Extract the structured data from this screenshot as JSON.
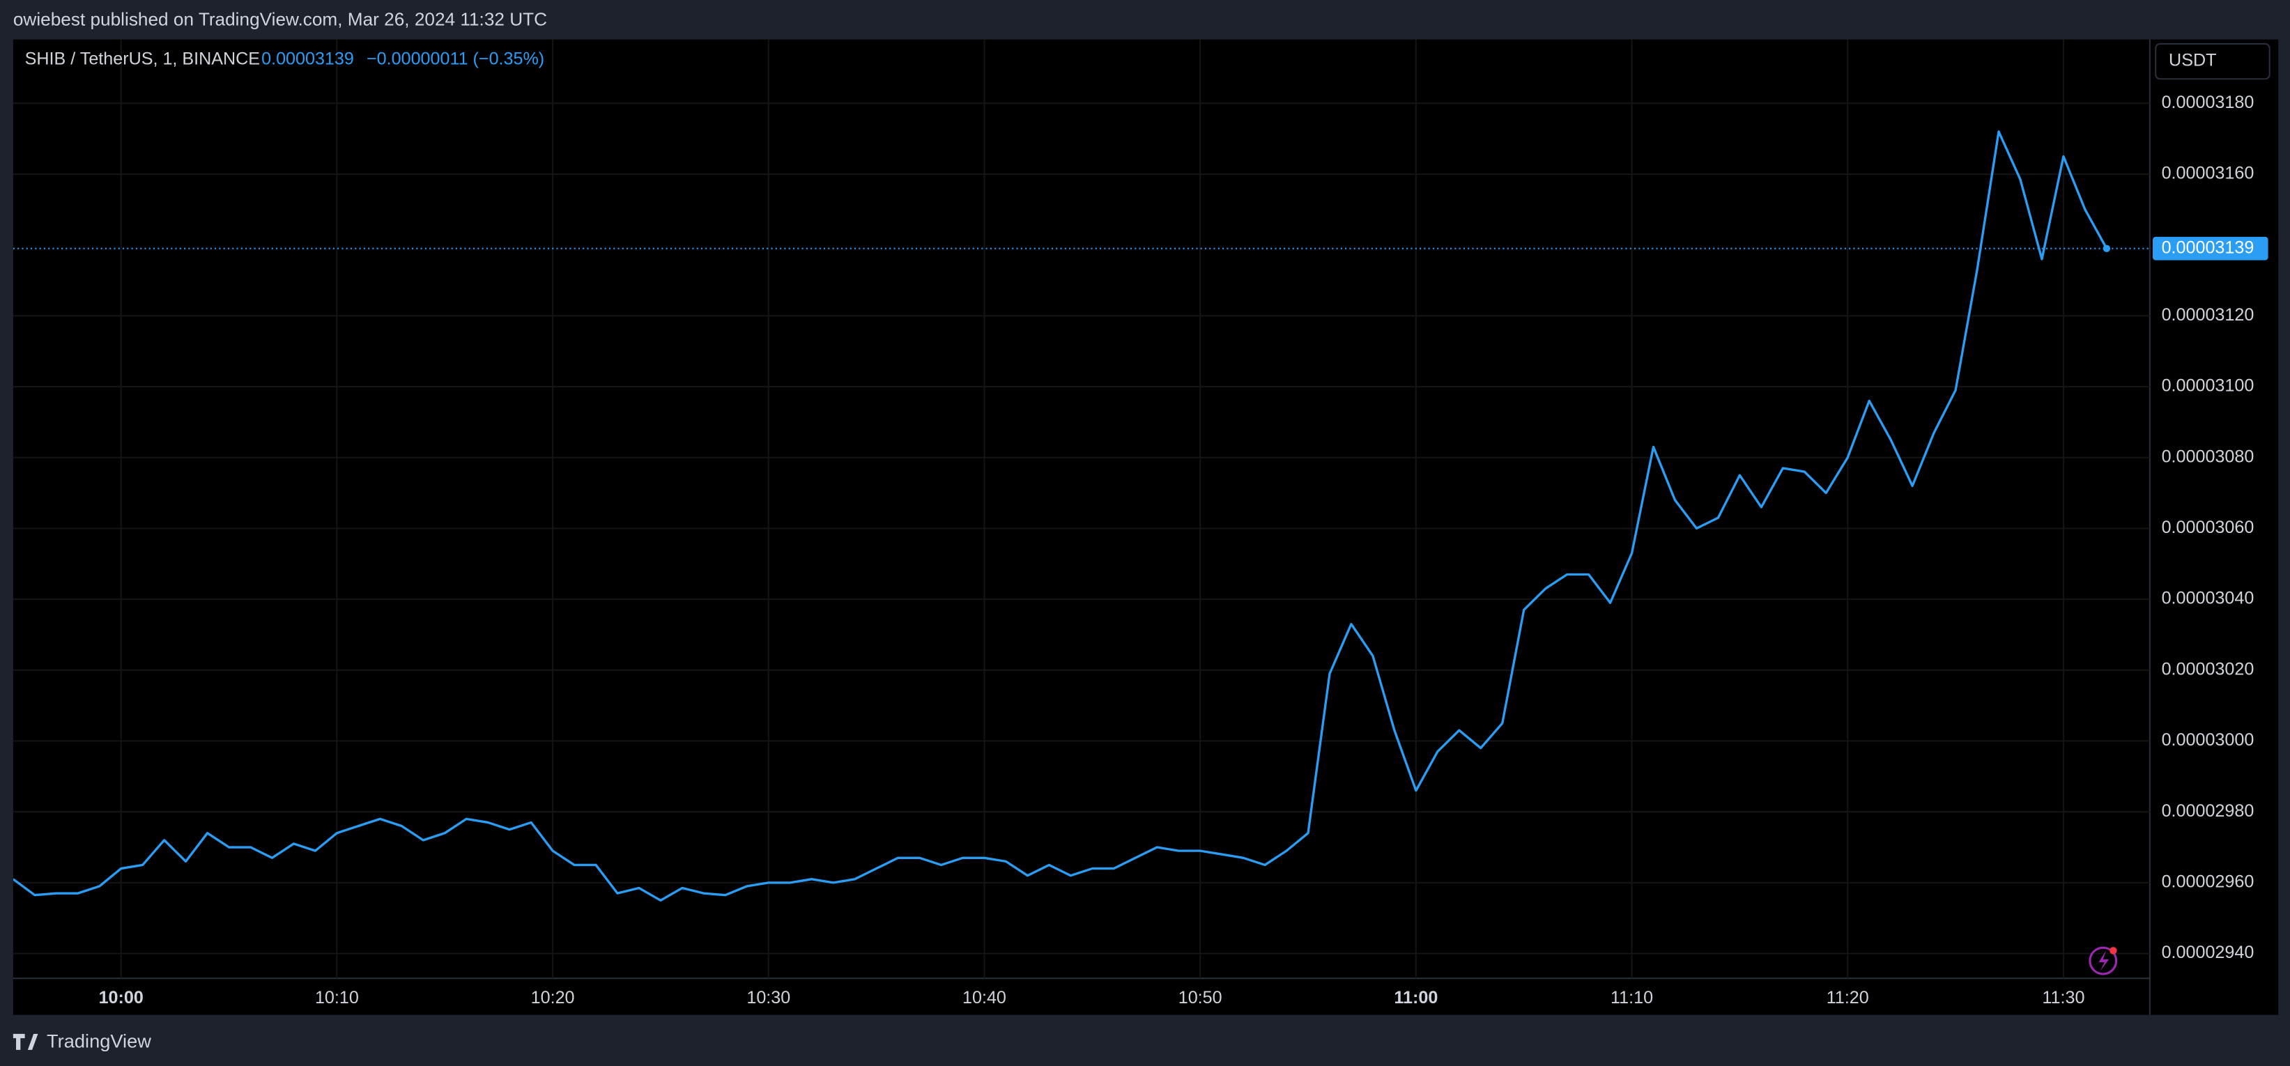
{
  "header": {
    "text": "owiebest published on TradingView.com, Mar 26, 2024 11:32 UTC"
  },
  "footer": {
    "brand": "TradingView"
  },
  "chart_data": {
    "type": "line",
    "title": "SHIB / TetherUS, 1, BINANCE",
    "last_price": {
      "value": 3.139e-05,
      "label": "0.00003139"
    },
    "change": "−0.00000011 (−0.35%)",
    "currency": "USDT",
    "color": "#2a9df4",
    "x": [
      "09:55",
      "09:56",
      "09:57",
      "09:58",
      "09:59",
      "10:00",
      "10:01",
      "10:02",
      "10:03",
      "10:04",
      "10:05",
      "10:06",
      "10:07",
      "10:08",
      "10:09",
      "10:10",
      "10:11",
      "10:12",
      "10:13",
      "10:14",
      "10:15",
      "10:16",
      "10:17",
      "10:18",
      "10:19",
      "10:20",
      "10:21",
      "10:22",
      "10:23",
      "10:24",
      "10:25",
      "10:26",
      "10:27",
      "10:28",
      "10:29",
      "10:30",
      "10:31",
      "10:32",
      "10:33",
      "10:34",
      "10:35",
      "10:36",
      "10:37",
      "10:38",
      "10:39",
      "10:40",
      "10:41",
      "10:42",
      "10:43",
      "10:44",
      "10:45",
      "10:46",
      "10:47",
      "10:48",
      "10:49",
      "10:50",
      "10:51",
      "10:52",
      "10:53",
      "10:54",
      "10:55",
      "10:56",
      "10:57",
      "10:58",
      "10:59",
      "11:00",
      "11:01",
      "11:02",
      "11:03",
      "11:04",
      "11:05",
      "11:06",
      "11:07",
      "11:08",
      "11:09",
      "11:10",
      "11:11",
      "11:12",
      "11:13",
      "11:14",
      "11:15",
      "11:16",
      "11:17",
      "11:18",
      "11:19",
      "11:20",
      "11:21",
      "11:22",
      "11:23",
      "11:24",
      "11:25",
      "11:26",
      "11:27",
      "11:28",
      "11:29",
      "11:30",
      "11:31",
      "11:32"
    ],
    "values": [
      2.961e-05,
      2.9565e-05,
      2.957e-05,
      2.957e-05,
      2.959e-05,
      2.964e-05,
      2.965e-05,
      2.972e-05,
      2.966e-05,
      2.974e-05,
      2.97e-05,
      2.97e-05,
      2.967e-05,
      2.971e-05,
      2.969e-05,
      2.974e-05,
      2.976e-05,
      2.978e-05,
      2.976e-05,
      2.972e-05,
      2.974e-05,
      2.978e-05,
      2.977e-05,
      2.975e-05,
      2.977e-05,
      2.969e-05,
      2.965e-05,
      2.965e-05,
      2.957e-05,
      2.9585e-05,
      2.955e-05,
      2.9585e-05,
      2.957e-05,
      2.9565e-05,
      2.959e-05,
      2.96e-05,
      2.96e-05,
      2.961e-05,
      2.96e-05,
      2.961e-05,
      2.964e-05,
      2.967e-05,
      2.967e-05,
      2.965e-05,
      2.967e-05,
      2.967e-05,
      2.966e-05,
      2.962e-05,
      2.965e-05,
      2.962e-05,
      2.964e-05,
      2.964e-05,
      2.967e-05,
      2.97e-05,
      2.969e-05,
      2.969e-05,
      2.968e-05,
      2.967e-05,
      2.965e-05,
      2.969e-05,
      2.974e-05,
      3.019e-05,
      3.033e-05,
      3.024e-05,
      3.003e-05,
      2.986e-05,
      2.997e-05,
      3.003e-05,
      2.998e-05,
      3.005e-05,
      3.037e-05,
      3.043e-05,
      3.047e-05,
      3.047e-05,
      3.039e-05,
      3.053e-05,
      3.083e-05,
      3.068e-05,
      3.06e-05,
      3.063e-05,
      3.075e-05,
      3.066e-05,
      3.077e-05,
      3.076e-05,
      3.07e-05,
      3.08e-05,
      3.096e-05,
      3.085e-05,
      3.072e-05,
      3.087e-05,
      3.099e-05,
      3.133e-05,
      3.172e-05,
      3.1585e-05,
      3.136e-05,
      3.165e-05,
      3.15e-05,
      3.139e-05
    ],
    "xlim": [
      "09:55",
      "11:34"
    ],
    "xticks": [
      "10:00",
      "10:10",
      "10:20",
      "10:30",
      "10:40",
      "10:50",
      "11:00",
      "11:10",
      "11:20",
      "11:30"
    ],
    "ylim": [
      2.933e-05,
      3.198e-05
    ],
    "yticks": [
      {
        "value": 2.94e-05,
        "label": "0.00002940"
      },
      {
        "value": 2.96e-05,
        "label": "0.00002960"
      },
      {
        "value": 2.98e-05,
        "label": "0.00002980"
      },
      {
        "value": 3e-05,
        "label": "0.00003000"
      },
      {
        "value": 3.02e-05,
        "label": "0.00003020"
      },
      {
        "value": 3.04e-05,
        "label": "0.00003040"
      },
      {
        "value": 3.06e-05,
        "label": "0.00003060"
      },
      {
        "value": 3.08e-05,
        "label": "0.00003080"
      },
      {
        "value": 3.1e-05,
        "label": "0.00003100"
      },
      {
        "value": 3.12e-05,
        "label": "0.00003120"
      },
      {
        "value": 3.16e-05,
        "label": "0.00003160"
      },
      {
        "value": 3.18e-05,
        "label": "0.00003180"
      }
    ],
    "grid": true
  }
}
